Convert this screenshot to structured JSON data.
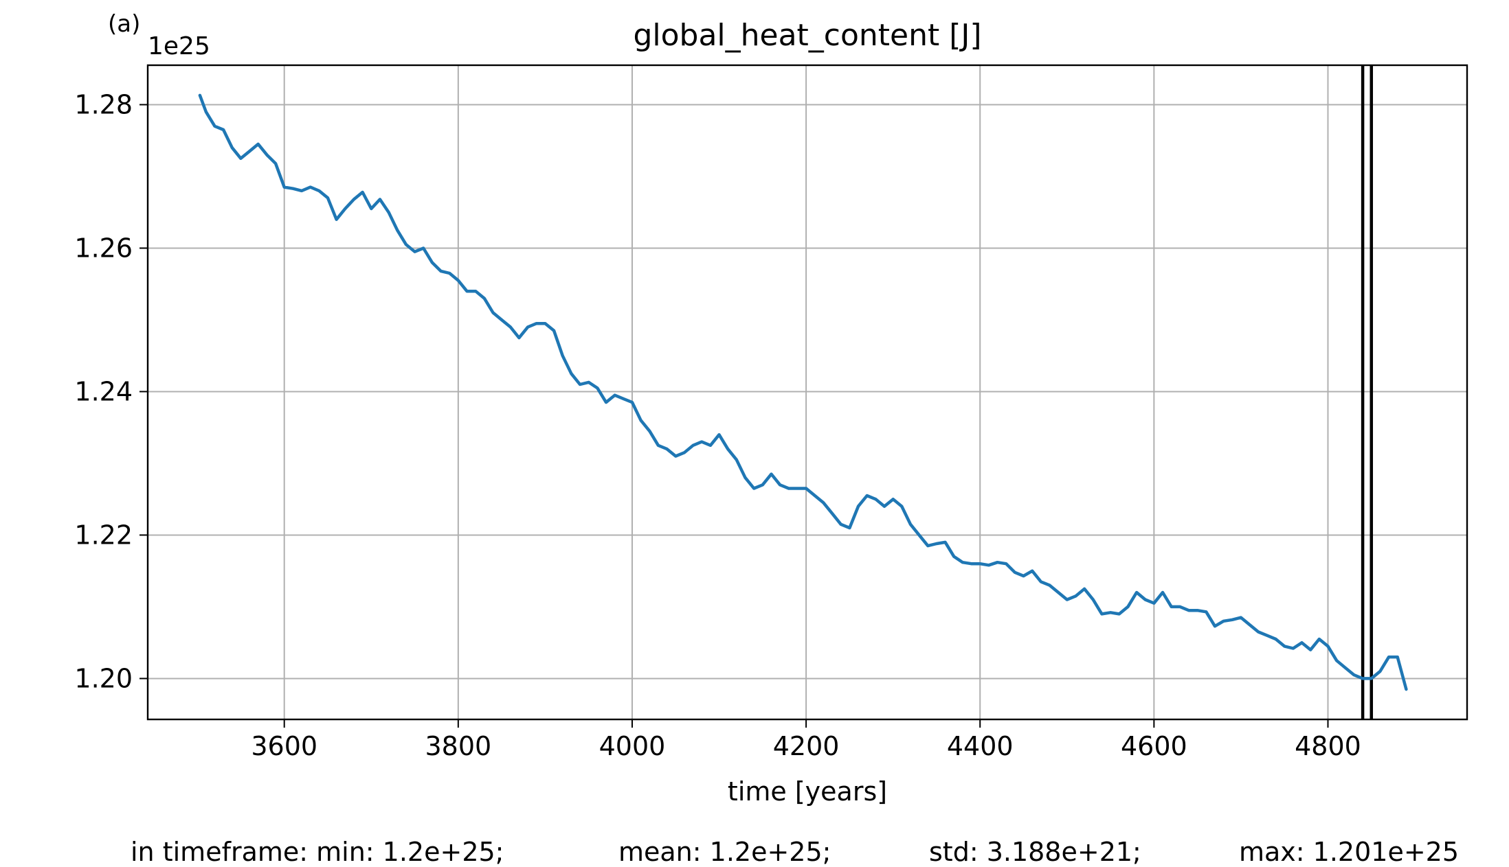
{
  "panel_label": "(a)",
  "chart_data": {
    "type": "line",
    "title": "global_heat_content [J]",
    "xlabel": "time [years]",
    "ylabel": "",
    "y_offset_label": "1e25",
    "xlim": [
      3443,
      4960
    ],
    "ylim": [
      1.1943,
      1.2855
    ],
    "xticks": [
      3600,
      3800,
      4000,
      4200,
      4400,
      4600,
      4800
    ],
    "yticks": [
      1.2,
      1.22,
      1.24,
      1.26,
      1.28
    ],
    "xtick_labels": [
      "3600",
      "3800",
      "4000",
      "4200",
      "4400",
      "4600",
      "4800"
    ],
    "ytick_labels": [
      "1.20",
      "1.22",
      "1.24",
      "1.26",
      "1.28"
    ],
    "grid": true,
    "series_color": "#1f77b4",
    "series": [
      {
        "x": [
          3503,
          3510,
          3520,
          3530,
          3540,
          3550,
          3560,
          3570,
          3580,
          3590,
          3600,
          3610,
          3620,
          3630,
          3640,
          3650,
          3660,
          3670,
          3680,
          3690,
          3700,
          3710,
          3720,
          3730,
          3740,
          3750,
          3760,
          3770,
          3780,
          3790,
          3800,
          3810,
          3820,
          3830,
          3840,
          3850,
          3860,
          3870,
          3880,
          3890,
          3900,
          3910,
          3920,
          3930,
          3940,
          3950,
          3960,
          3970,
          3980,
          3990,
          4000,
          4010,
          4020,
          4030,
          4040,
          4050,
          4060,
          4070,
          4080,
          4090,
          4100,
          4110,
          4120,
          4130,
          4140,
          4150,
          4160,
          4170,
          4180,
          4190,
          4200,
          4210,
          4220,
          4230,
          4240,
          4250,
          4260,
          4270,
          4280,
          4290,
          4300,
          4310,
          4320,
          4330,
          4340,
          4350,
          4360,
          4370,
          4380,
          4390,
          4400,
          4410,
          4420,
          4430,
          4440,
          4450,
          4460,
          4470,
          4480,
          4490,
          4500,
          4510,
          4520,
          4530,
          4540,
          4550,
          4560,
          4570,
          4580,
          4590,
          4600,
          4610,
          4620,
          4630,
          4640,
          4650,
          4660,
          4670,
          4680,
          4690,
          4700,
          4710,
          4720,
          4730,
          4740,
          4750,
          4760,
          4770,
          4780,
          4790,
          4800,
          4810,
          4820,
          4830,
          4840,
          4850,
          4860,
          4870,
          4880,
          4890
        ],
        "values": [
          1.2813,
          1.279,
          1.277,
          1.2765,
          1.274,
          1.2725,
          1.2735,
          1.2745,
          1.273,
          1.2718,
          1.2685,
          1.2683,
          1.268,
          1.2685,
          1.268,
          1.267,
          1.264,
          1.2655,
          1.2668,
          1.2678,
          1.2655,
          1.2668,
          1.265,
          1.2625,
          1.2605,
          1.2595,
          1.26,
          1.258,
          1.2568,
          1.2565,
          1.2555,
          1.254,
          1.254,
          1.253,
          1.251,
          1.25,
          1.249,
          1.2475,
          1.249,
          1.2495,
          1.2495,
          1.2485,
          1.245,
          1.2425,
          1.241,
          1.2413,
          1.2405,
          1.2385,
          1.2395,
          1.239,
          1.2385,
          1.236,
          1.2345,
          1.2325,
          1.232,
          1.231,
          1.2315,
          1.2325,
          1.233,
          1.2325,
          1.234,
          1.232,
          1.2305,
          1.228,
          1.2265,
          1.227,
          1.2285,
          1.227,
          1.2265,
          1.2265,
          1.2265,
          1.2255,
          1.2245,
          1.223,
          1.2215,
          1.221,
          1.224,
          1.2255,
          1.225,
          1.224,
          1.225,
          1.224,
          1.2215,
          1.22,
          1.2185,
          1.2188,
          1.219,
          1.217,
          1.2162,
          1.216,
          1.216,
          1.2158,
          1.2162,
          1.216,
          1.2148,
          1.2143,
          1.215,
          1.2135,
          1.213,
          1.212,
          1.211,
          1.2115,
          1.2125,
          1.211,
          1.209,
          1.2092,
          1.209,
          1.21,
          1.212,
          1.211,
          1.2105,
          1.212,
          1.21,
          1.21,
          1.2095,
          1.2095,
          1.2093,
          1.2073,
          1.208,
          1.2082,
          1.2085,
          1.2075,
          1.2065,
          1.206,
          1.2055,
          1.2045,
          1.2042,
          1.205,
          1.204,
          1.2055,
          1.2045,
          1.2025,
          1.2015,
          1.2005,
          1.2,
          1.2,
          1.201,
          1.203,
          1.203,
          1.1985
        ]
      }
    ],
    "vertical_lines_x": [
      4840,
      4850
    ],
    "vertical_lines_color": "#000000"
  },
  "stats_text": {
    "min": "in timeframe: min: 1.2e+25;",
    "mean": "mean: 1.2e+25;",
    "std": "std: 3.188e+21;",
    "max": "max: 1.201e+25"
  }
}
